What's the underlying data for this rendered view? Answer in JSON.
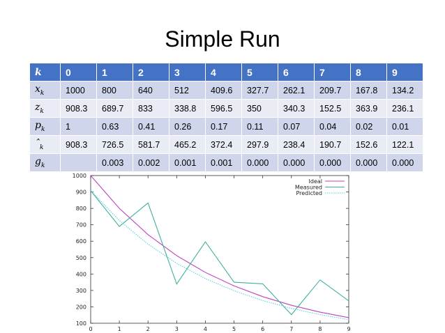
{
  "slide": {
    "title": "Simple Run"
  },
  "table": {
    "header": {
      "symbol": "k",
      "subscript": "",
      "values": [
        "0",
        "1",
        "2",
        "3",
        "4",
        "5",
        "6",
        "7",
        "8",
        "9"
      ]
    },
    "rows": [
      {
        "symbol": "x",
        "subscript": "k",
        "values": [
          "1000",
          "800",
          "640",
          "512",
          "409.6",
          "327.7",
          "262.1",
          "209.7",
          "167.8",
          "134.2"
        ]
      },
      {
        "symbol": "z",
        "subscript": "k",
        "values": [
          "908.3",
          "689.7",
          "833",
          "338.8",
          "596.5",
          "350",
          "340.3",
          "152.5",
          "363.9",
          "236.1"
        ]
      },
      {
        "symbol": "p",
        "subscript": "k",
        "values": [
          "1",
          "0.63",
          "0.41",
          "0.26",
          "0.17",
          "0.11",
          "0.07",
          "0.04",
          "0.02",
          "0.01"
        ]
      },
      {
        "symbol": "ˆ",
        "subscript": "k",
        "values": [
          "908.3",
          "726.5",
          "581.7",
          "465.2",
          "372.4",
          "297.9",
          "238.4",
          "190.7",
          "152.6",
          "122.1"
        ]
      },
      {
        "symbol": "g",
        "subscript": "k",
        "values": [
          "",
          "0.003",
          "0.002",
          "0.001",
          "0.001",
          "0.000",
          "0.000",
          "0.000",
          "0.000",
          "0.000"
        ]
      }
    ]
  },
  "chart_data": {
    "type": "line",
    "x": [
      0,
      1,
      2,
      3,
      4,
      5,
      6,
      7,
      8,
      9
    ],
    "xlim": [
      0,
      9
    ],
    "ylim": [
      100,
      1000
    ],
    "xticks": [
      "0",
      "1",
      "2",
      "3",
      "4",
      "5",
      "6",
      "7",
      "8",
      "9"
    ],
    "yticks": [
      "100",
      "200",
      "300",
      "400",
      "500",
      "600",
      "700",
      "800",
      "900",
      "1000"
    ],
    "grid": false,
    "legend": "top-right",
    "series": [
      {
        "name": "Ideal",
        "color": "#c040c0",
        "dash": "solid",
        "values": [
          1000,
          800,
          640,
          512,
          409.6,
          327.7,
          262.1,
          209.7,
          167.8,
          134.2
        ]
      },
      {
        "name": "Measured",
        "color": "#40b0a0",
        "dash": "solid",
        "values": [
          908.3,
          689.7,
          833,
          338.8,
          596.5,
          350,
          340.3,
          152.5,
          363.9,
          236.1
        ]
      },
      {
        "name": "Predicted",
        "color": "#50c8e0",
        "dash": "dotted",
        "values": [
          908.3,
          726.5,
          581.7,
          465.2,
          372.4,
          297.9,
          238.4,
          190.7,
          152.6,
          122.1
        ]
      }
    ]
  }
}
